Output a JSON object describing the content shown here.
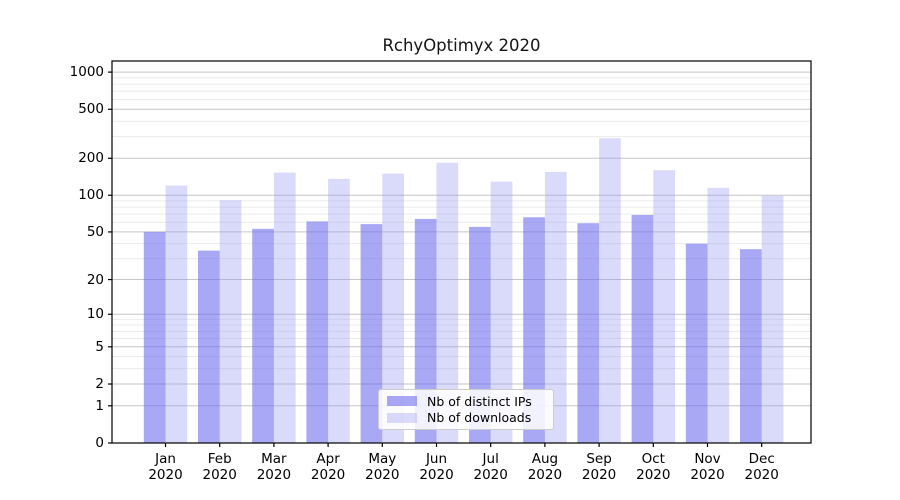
{
  "chart_data": {
    "type": "bar",
    "title": "RchyOptimyx 2020",
    "categories": [
      "Jan",
      "Feb",
      "Mar",
      "Apr",
      "May",
      "Jun",
      "Jul",
      "Aug",
      "Sep",
      "Oct",
      "Nov",
      "Dec"
    ],
    "x_year": "2020",
    "series": [
      {
        "key": "distinct-ips",
        "name": "Nb of distinct IPs",
        "color": "rgba(110,110,236,0.60)",
        "rendered_color": "#a8a8f3",
        "values": [
          50,
          35,
          53,
          61,
          58,
          64,
          55,
          66,
          59,
          69,
          40,
          36
        ]
      },
      {
        "key": "downloads",
        "name": "Nb of downloads",
        "color": "rgba(150,150,242,0.35)",
        "rendered_color": "#dadafa",
        "values": [
          120,
          91,
          153,
          136,
          150,
          184,
          129,
          155,
          291,
          160,
          115,
          99
        ]
      }
    ],
    "yscale": "log1p",
    "ylim": [
      0,
      1230
    ],
    "y_ticks": [
      1000,
      500,
      200,
      100,
      50,
      20,
      10,
      5,
      2,
      1,
      0
    ],
    "grid": {
      "on": true,
      "major": [
        1,
        2,
        5,
        10,
        20,
        50,
        100,
        200,
        500,
        1000
      ],
      "minor": [
        3,
        4,
        6,
        7,
        8,
        9,
        30,
        40,
        60,
        70,
        80,
        90,
        300,
        400,
        600,
        700,
        800,
        900
      ]
    },
    "legend_position": "lower center",
    "colors": {
      "axis": "#000000",
      "grid_major": "#c6c6ca",
      "grid_minor": "#ebebeb",
      "background": "#ffffff"
    }
  }
}
